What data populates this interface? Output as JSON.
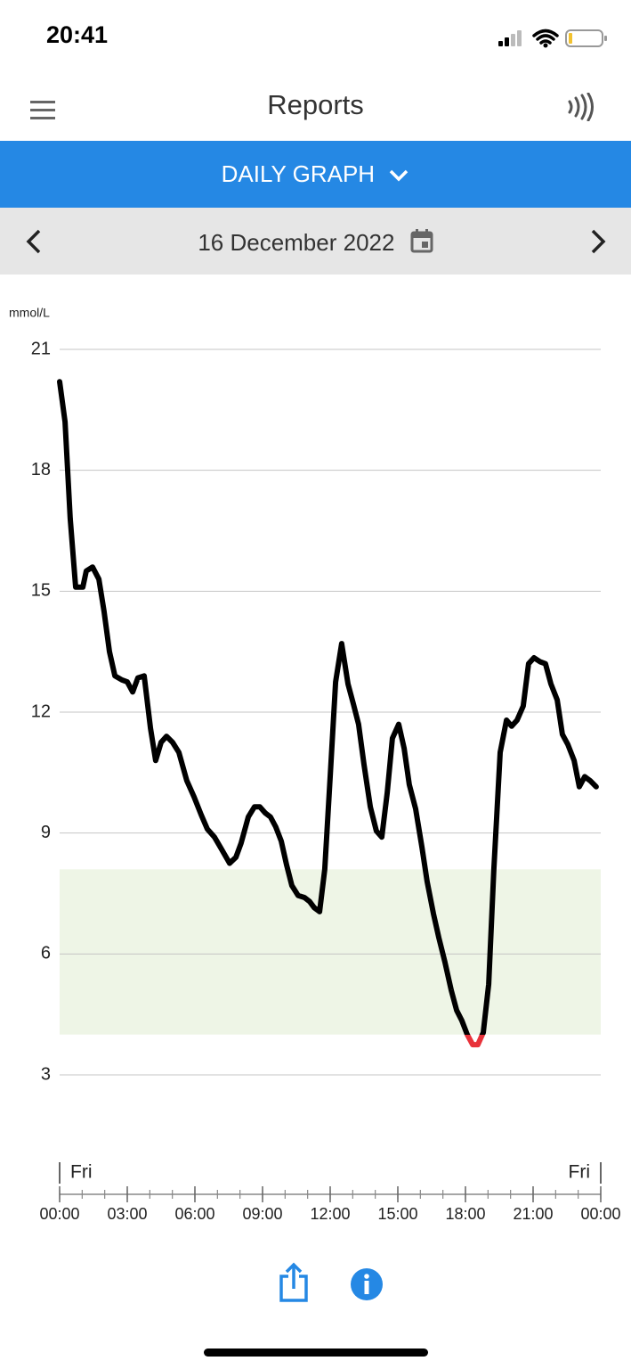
{
  "status_bar": {
    "time": "20:41"
  },
  "header": {
    "title": "Reports"
  },
  "tab": {
    "label": "DAILY GRAPH"
  },
  "date_nav": {
    "date": "16 December 2022"
  },
  "chart_data": {
    "type": "line",
    "y_label": "mmol/L",
    "day_labels": [
      "Fri",
      "Fri"
    ],
    "color": "#000000",
    "low_color": "#e8323a",
    "target_range": [
      4.0,
      8.1
    ],
    "target_color": "#eef5e6",
    "grid": true,
    "xlim": [
      0,
      24
    ],
    "xticks": [
      {
        "value": 0,
        "label": "00:00"
      },
      {
        "value": 3,
        "label": "03:00"
      },
      {
        "value": 6,
        "label": "06:00"
      },
      {
        "value": 9,
        "label": "09:00"
      },
      {
        "value": 12,
        "label": "12:00"
      },
      {
        "value": 15,
        "label": "15:00"
      },
      {
        "value": 18,
        "label": "18:00"
      },
      {
        "value": 21,
        "label": "21:00"
      },
      {
        "value": 24,
        "label": "00:00"
      }
    ],
    "ylim": [
      3,
      21
    ],
    "yticks": [
      3,
      6,
      9,
      12,
      15,
      18,
      21
    ],
    "x": [
      0,
      0.24,
      0.47,
      0.71,
      1.03,
      1.18,
      1.46,
      1.74,
      1.97,
      2.21,
      2.45,
      2.76,
      3.0,
      3.24,
      3.47,
      3.75,
      4.03,
      4.26,
      4.5,
      4.74,
      5.01,
      5.29,
      5.64,
      5.96,
      6.28,
      6.55,
      6.87,
      7.18,
      7.54,
      7.82,
      8.05,
      8.37,
      8.64,
      8.88,
      9.12,
      9.35,
      9.59,
      9.83,
      10.07,
      10.3,
      10.58,
      10.86,
      11.09,
      11.29,
      11.53,
      11.76,
      12.0,
      12.24,
      12.51,
      12.79,
      13.03,
      13.26,
      13.5,
      13.78,
      14.05,
      14.29,
      14.53,
      14.76,
      15.04,
      15.28,
      15.51,
      15.79,
      16.07,
      16.3,
      16.58,
      16.82,
      17.09,
      17.37,
      17.61,
      17.84,
      18.08,
      18.32,
      18.55,
      18.79,
      19.03,
      19.26,
      19.54,
      19.82,
      20.05,
      20.29,
      20.56,
      20.8,
      21.04,
      21.31,
      21.55,
      21.79,
      22.07,
      22.3,
      22.54,
      22.82,
      23.05,
      23.29,
      23.53,
      23.8
    ],
    "values": [
      20.2,
      19.2,
      16.8,
      15.1,
      15.1,
      15.5,
      15.6,
      15.3,
      14.5,
      13.5,
      12.9,
      12.8,
      12.75,
      12.5,
      12.85,
      12.9,
      11.6,
      10.8,
      11.25,
      11.4,
      11.25,
      11.0,
      10.3,
      9.9,
      9.45,
      9.1,
      8.9,
      8.6,
      8.25,
      8.4,
      8.75,
      9.4,
      9.65,
      9.65,
      9.5,
      9.4,
      9.15,
      8.8,
      8.2,
      7.7,
      7.45,
      7.4,
      7.3,
      7.15,
      7.05,
      8.1,
      10.4,
      12.75,
      13.7,
      12.7,
      12.2,
      11.7,
      10.7,
      9.65,
      9.05,
      8.9,
      10.0,
      11.35,
      11.7,
      11.1,
      10.2,
      9.6,
      8.65,
      7.8,
      7.0,
      6.4,
      5.8,
      5.1,
      4.6,
      4.35,
      4.0,
      3.75,
      3.75,
      4.05,
      5.25,
      8.1,
      11.0,
      11.8,
      11.65,
      11.8,
      12.15,
      13.2,
      13.35,
      13.25,
      13.2,
      12.7,
      12.3,
      11.45,
      11.2,
      10.8,
      10.15,
      10.4,
      10.3,
      10.15
    ]
  }
}
